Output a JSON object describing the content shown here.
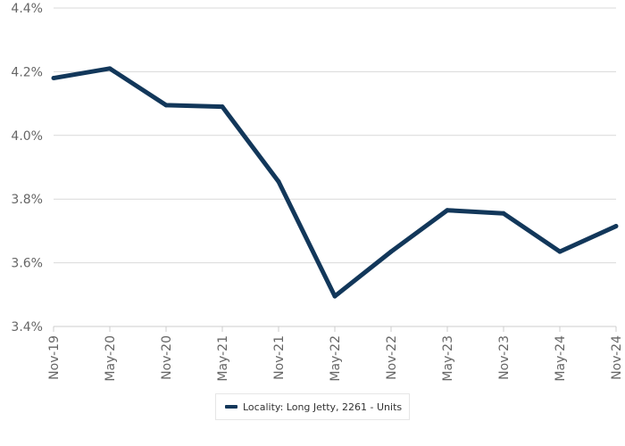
{
  "chart_data": {
    "type": "line",
    "title": "",
    "xlabel": "",
    "ylabel": "",
    "categories": [
      "Nov-19",
      "May-20",
      "Nov-20",
      "May-21",
      "Nov-21",
      "May-22",
      "Nov-22",
      "May-23",
      "Nov-23",
      "May-24",
      "Nov-24"
    ],
    "series": [
      {
        "name": "Locality: Long Jetty, 2261 - Units",
        "values": [
          4.18,
          4.21,
          4.095,
          4.09,
          3.855,
          3.495,
          3.635,
          3.765,
          3.755,
          3.635,
          3.715
        ],
        "color": "#12375a"
      }
    ],
    "ylim": [
      3.4,
      4.4
    ],
    "yticks": [
      3.4,
      3.6,
      3.8,
      4.0,
      4.2,
      4.4
    ],
    "ytick_labels": [
      "3.4%",
      "3.6%",
      "3.8%",
      "4.0%",
      "4.2%",
      "4.4%"
    ],
    "grid": true,
    "legend_position": "bottom-center"
  },
  "colors": {
    "series_line": "#12375a",
    "grid": "#d9d9d9",
    "tick_text": "#666666"
  }
}
